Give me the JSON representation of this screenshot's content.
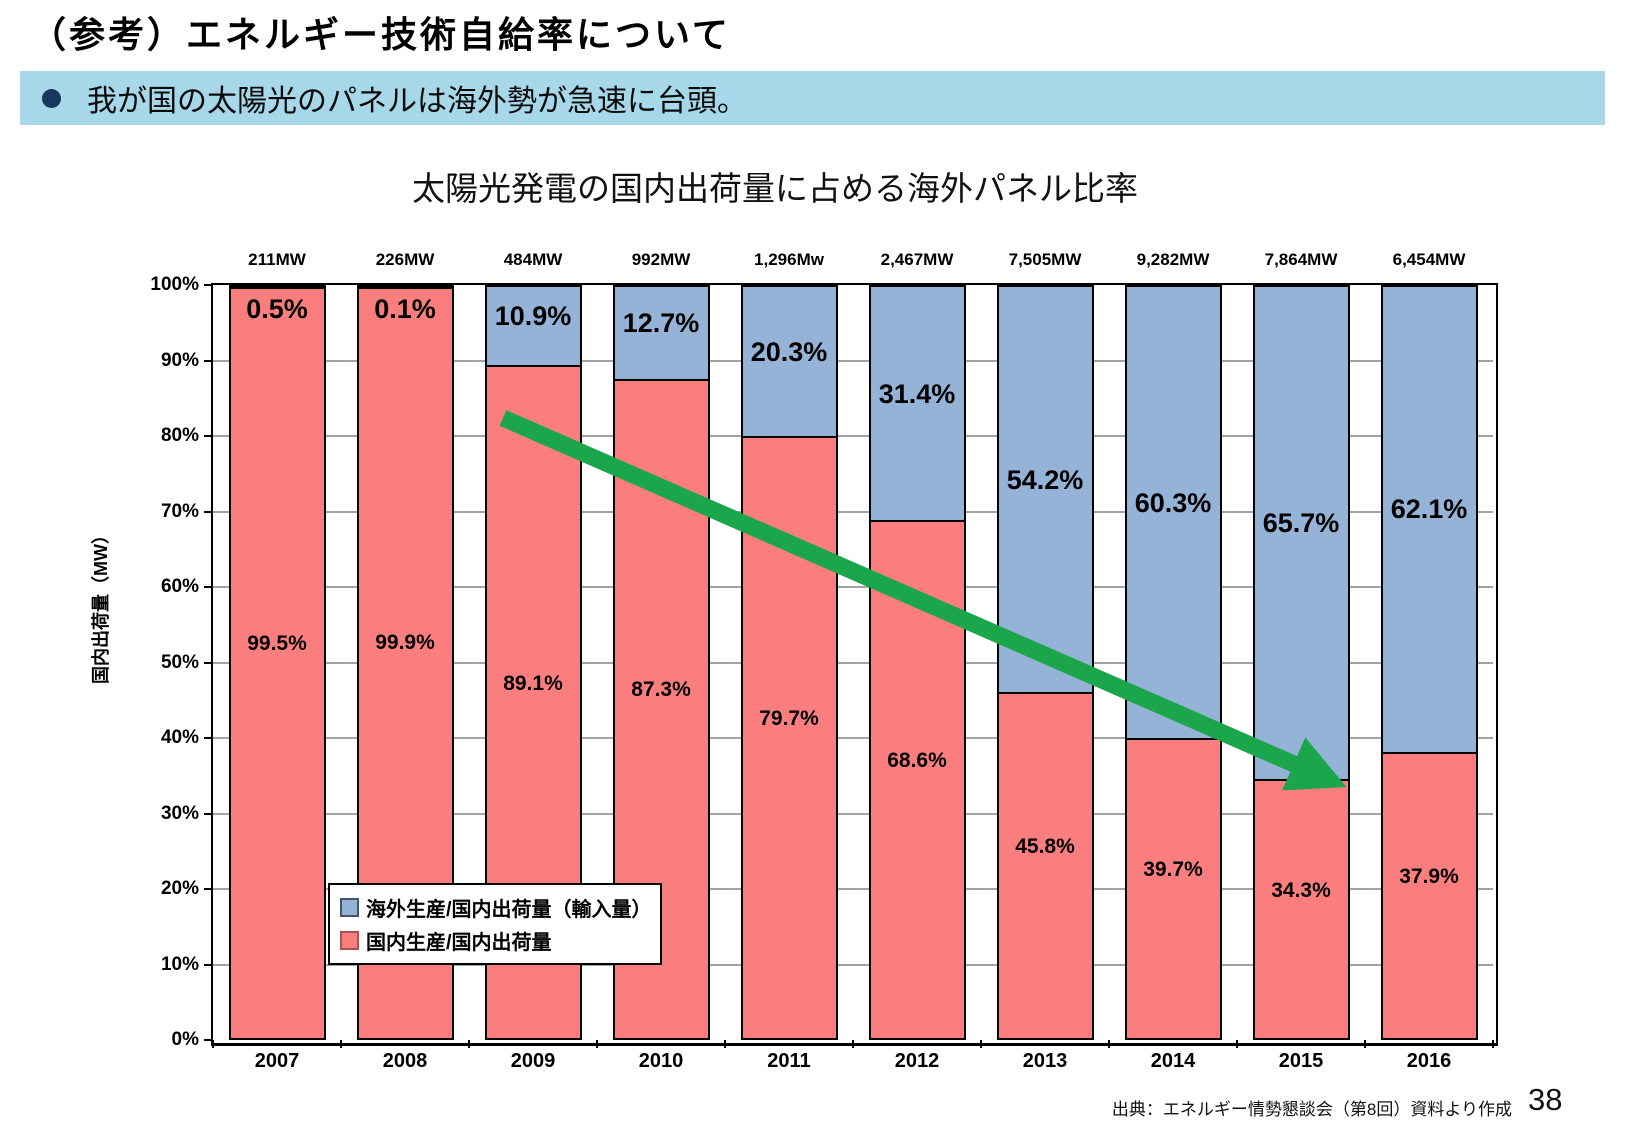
{
  "page": {
    "title": "（参考）エネルギー技術自給率について",
    "banner": "我が国の太陽光のパネルは海外勢が急速に台頭。",
    "banner_color": "#A6D8EA",
    "bullet_color": "#17375E",
    "source": "出典：エネルギー情勢懇談会（第8回）資料より作成",
    "page_number": "38"
  },
  "chart_data": {
    "type": "bar",
    "stacked": true,
    "title": "太陽光発電の国内出荷量に占める海外パネル比率",
    "xlabel": "",
    "ylabel": "国内出荷量（MW）",
    "ylim": [
      0,
      100
    ],
    "y_ticks": [
      "100%",
      "90%",
      "80%",
      "70%",
      "60%",
      "50%",
      "40%",
      "30%",
      "20%",
      "10%",
      "0%"
    ],
    "grid": true,
    "grid_color": "#A3A3A3",
    "legend_position": "inside-bottom-left",
    "categories": [
      "2007",
      "2008",
      "2009",
      "2010",
      "2011",
      "2012",
      "2013",
      "2014",
      "2015",
      "2016"
    ],
    "totals_mw": [
      "211MW",
      "226MW",
      "484MW",
      "992MW",
      "1,296Mw",
      "2,467MW",
      "7,505MW",
      "9,282MW",
      "7,864MW",
      "6,454MW"
    ],
    "series": [
      {
        "name": "海外生産/国内出荷量（輸入量）",
        "color": "#95B3D7",
        "values": [
          0.5,
          0.1,
          10.9,
          12.7,
          20.3,
          31.4,
          54.2,
          60.3,
          65.7,
          62.1
        ],
        "labels": [
          "0.5%",
          "0.1%",
          "10.9%",
          "12.7%",
          "20.3%",
          "31.4%",
          "54.2%",
          "60.3%",
          "65.7%",
          "62.1%"
        ]
      },
      {
        "name": "国内生産/国内出荷量",
        "color": "#FB7E7E",
        "values": [
          99.5,
          99.9,
          89.1,
          87.3,
          79.7,
          68.6,
          45.8,
          39.7,
          34.3,
          37.9
        ],
        "labels": [
          "99.5%",
          "99.9%",
          "89.1%",
          "87.3%",
          "79.7%",
          "68.6%",
          "45.8%",
          "39.7%",
          "34.3%",
          "37.9%"
        ]
      }
    ],
    "annotation_arrow": {
      "color": "#1BA64B"
    }
  }
}
